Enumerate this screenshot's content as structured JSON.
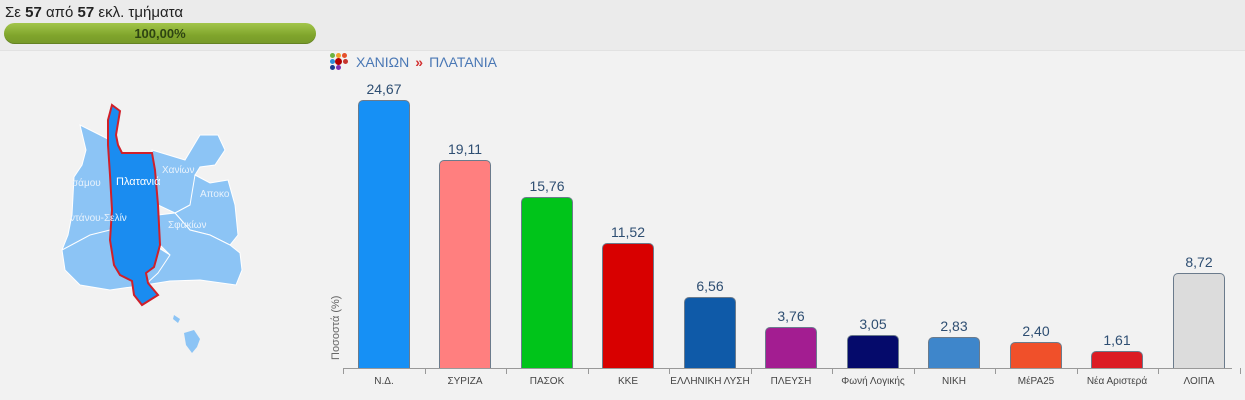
{
  "header": {
    "counter_prefix": "Σε",
    "counted": "57",
    "counter_mid": "από",
    "total": "57",
    "counter_suffix": "εκλ. τμήματα",
    "progress_label": "100,00%",
    "progress_percent": 100
  },
  "breadcrumb": {
    "parent": "ΧΑΝΙΩΝ",
    "separator": "»",
    "current": "ΠΛΑΤΑΝΙΑ"
  },
  "map": {
    "selected_region": "Πλατανιά",
    "regions": [
      "Κισσάμου",
      "Πλατανιά",
      "Χανίων",
      "Αποκορώνου",
      "Καντάνου-Σελίνου",
      "Σφακίων"
    ],
    "labels_visible": [
      "σάμου",
      "Πλατανιά",
      "Χανίων",
      "Αποκο",
      "ντάνου-Σελίν",
      "Σφακίων"
    ],
    "colors": {
      "region": "#8cc4f5",
      "selected": "#1a8cf0",
      "selected_border": "#d0202a",
      "borders": "#ffffff"
    }
  },
  "chart_data": {
    "type": "bar",
    "title": "ΧΑΝΙΩΝ » ΠΛΑΤΑΝΙΑ",
    "xlabel": "",
    "ylabel": "Ποσοστά (%)",
    "ylim": [
      0,
      25
    ],
    "grid": false,
    "legend": "none",
    "categories": [
      "Ν.Δ.",
      "ΣΥΡΙΖΑ",
      "ΠΑΣΟΚ",
      "ΚΚΕ",
      "ΕΛΛΗΝΙΚΗ ΛΥΣΗ",
      "ΠΛΕΥΣΗ",
      "Φωνή Λογικής",
      "ΝΙΚΗ",
      "ΜέΡΑ25",
      "Νέα Αριστερά",
      "ΛΟΙΠΑ"
    ],
    "values": [
      24.67,
      19.11,
      15.76,
      11.52,
      6.56,
      3.76,
      3.05,
      2.83,
      2.4,
      1.61,
      8.72
    ],
    "value_labels": [
      "24,67",
      "19,11",
      "15,76",
      "11,52",
      "6,56",
      "3,76",
      "3,05",
      "2,83",
      "2,40",
      "1,61",
      "8,72"
    ],
    "colors": [
      "#1690f5",
      "#ff7f7f",
      "#00c41a",
      "#d80000",
      "#0f5aa8",
      "#a31d91",
      "#050a6b",
      "#3e86cb",
      "#f0502a",
      "#dc1c24",
      "#dcdcdc"
    ]
  }
}
